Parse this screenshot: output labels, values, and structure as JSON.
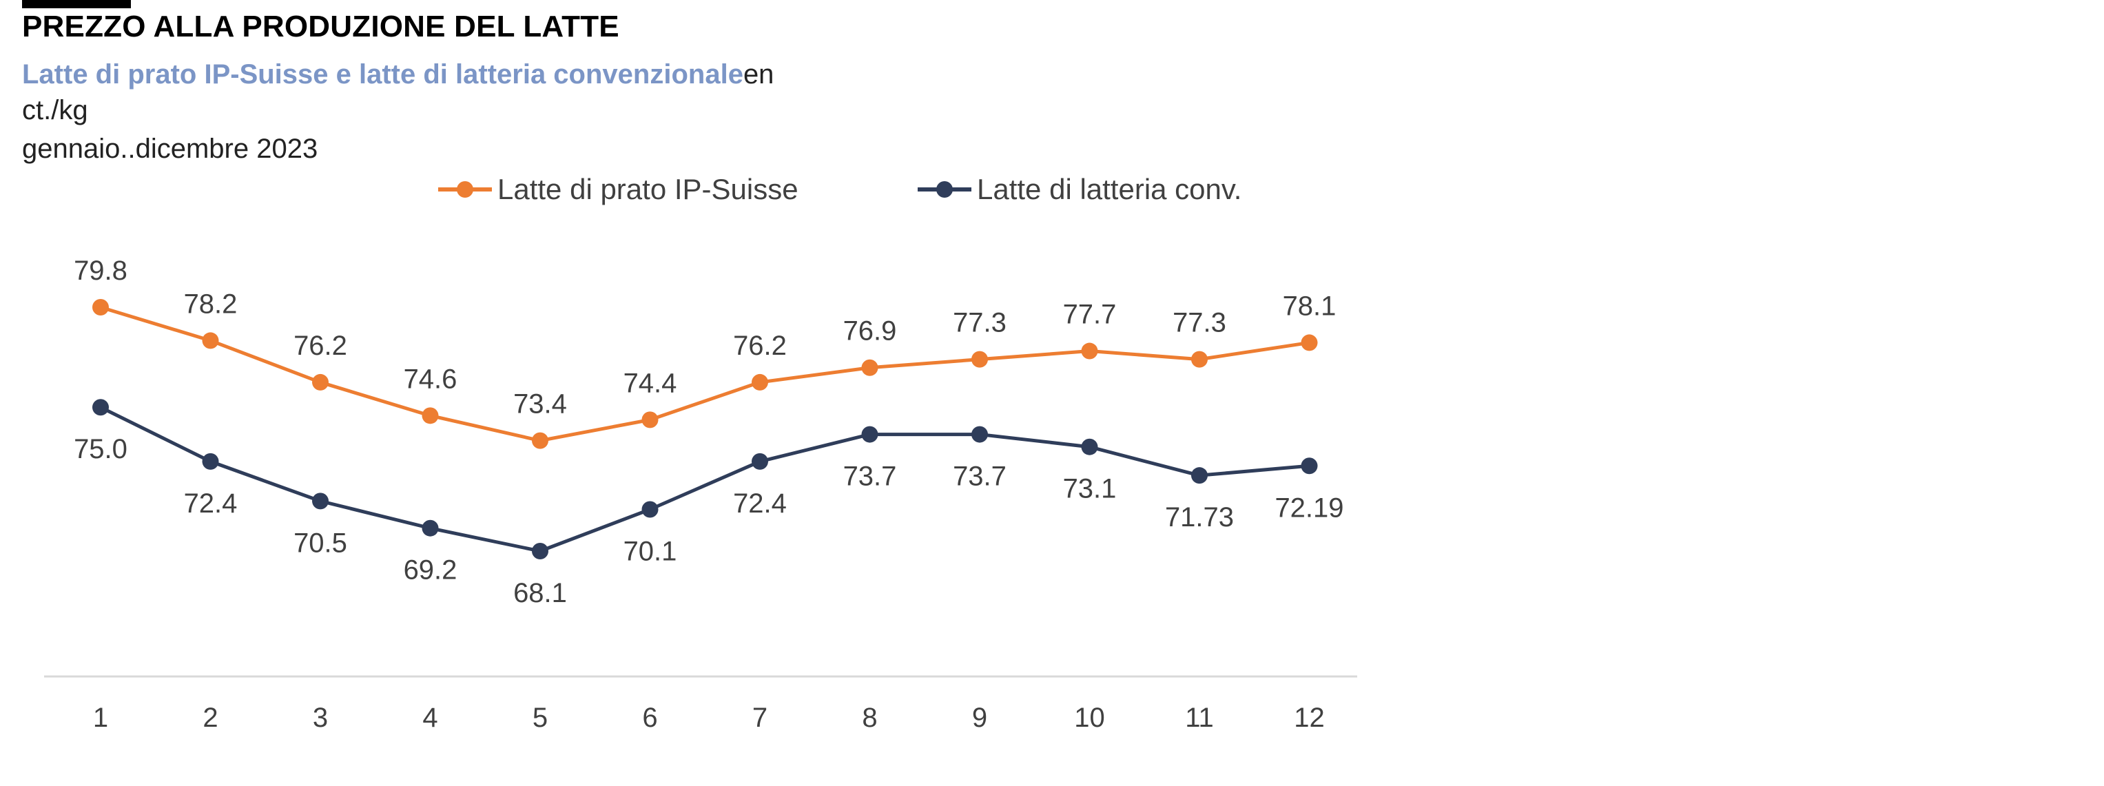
{
  "header": {
    "title": "PREZZO ALLA PRODUZIONE DEL LATTE",
    "subtitle_highlight": "Latte di prato IP-Suisse  e latte di latteria convenzionale",
    "subtitle_suffix": "en",
    "unit": "ct./kg",
    "period": "gennaio..dicembre 2023"
  },
  "colors": {
    "series_1": "#ed7d31",
    "series_2": "#2f3d5a",
    "subtitle_highlight": "#7b95c6",
    "axis": "#d9d9d9"
  },
  "chart_data": {
    "type": "line",
    "title": "PREZZO ALLA PRODUZIONE DEL LATTE",
    "x": [
      "1",
      "2",
      "3",
      "4",
      "5",
      "6",
      "7",
      "8",
      "9",
      "10",
      "11",
      "12"
    ],
    "series": [
      {
        "name": "Latte di prato IP-Suisse",
        "values": [
          79.8,
          78.2,
          76.2,
          74.6,
          73.4,
          74.4,
          76.2,
          76.9,
          77.3,
          77.7,
          77.3,
          78.1
        ],
        "labels": [
          "79.8",
          "78.2",
          "76.2",
          "74.6",
          "73.4",
          "74.4",
          "76.2",
          "76.9",
          "77.3",
          "77.7",
          "77.3",
          "78.1"
        ],
        "color": "#ed7d31"
      },
      {
        "name": "Latte di latteria conv.",
        "values": [
          75.0,
          72.4,
          70.5,
          69.2,
          68.1,
          70.1,
          72.4,
          73.7,
          73.7,
          73.1,
          71.73,
          72.19
        ],
        "labels": [
          "75.0",
          "72.4",
          "70.5",
          "69.2",
          "68.1",
          "70.1",
          "72.4",
          "73.7",
          "73.7",
          "73.1",
          "71.73",
          "72.19"
        ],
        "color": "#2f3d5a"
      }
    ],
    "legend_position": "top-center",
    "grid": false,
    "y_axis_visible": false,
    "xlabel": "",
    "ylabel": ""
  }
}
